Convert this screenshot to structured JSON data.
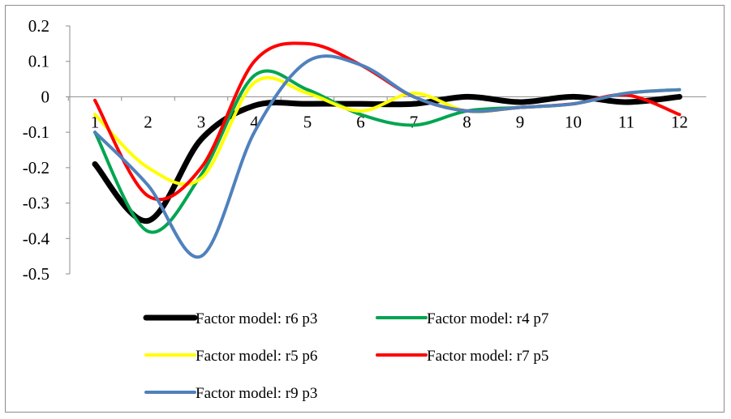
{
  "chart_data": {
    "type": "line",
    "title": "",
    "xlabel": "",
    "ylabel": "",
    "categories": [
      "1",
      "2",
      "3",
      "4",
      "5",
      "6",
      "7",
      "8",
      "9",
      "10",
      "11",
      "12"
    ],
    "ylim": [
      -0.5,
      0.2
    ],
    "y_ticks": [
      "0.2",
      "0.1",
      "0",
      "-0.1",
      "-0.2",
      "-0.3",
      "-0.4",
      "-0.5"
    ],
    "grid": false,
    "smooth": true,
    "legend_position": "bottom",
    "series": [
      {
        "name": "Factor model: r6 p3",
        "color": "#000000",
        "width": 7,
        "values": [
          -0.19,
          -0.35,
          -0.12,
          -0.025,
          -0.02,
          -0.02,
          -0.02,
          0.0,
          -0.015,
          0.0,
          -0.015,
          0.0
        ]
      },
      {
        "name": "Factor model: r4 p7",
        "color": "#00a550",
        "width": 4,
        "values": [
          -0.1,
          -0.38,
          -0.22,
          0.06,
          0.02,
          -0.05,
          -0.08,
          -0.04,
          -0.03,
          -0.02,
          0.01,
          0.02
        ]
      },
      {
        "name": "Factor model: r5 p6",
        "color": "#ffff00",
        "width": 4,
        "values": [
          -0.05,
          -0.2,
          -0.23,
          0.04,
          0.01,
          -0.04,
          0.01,
          -0.04,
          -0.03,
          -0.02,
          0.01,
          0.02
        ]
      },
      {
        "name": "Factor model: r7 p5",
        "color": "#ff0000",
        "width": 4,
        "values": [
          -0.01,
          -0.28,
          -0.2,
          0.1,
          0.15,
          0.09,
          0.0,
          -0.04,
          -0.03,
          -0.02,
          0.005,
          -0.05
        ]
      },
      {
        "name": "Factor model: r9 p3",
        "color": "#4f81bd",
        "width": 4,
        "values": [
          -0.1,
          -0.25,
          -0.45,
          -0.1,
          0.1,
          0.09,
          0.0,
          -0.04,
          -0.03,
          -0.02,
          0.01,
          0.02
        ]
      }
    ]
  }
}
